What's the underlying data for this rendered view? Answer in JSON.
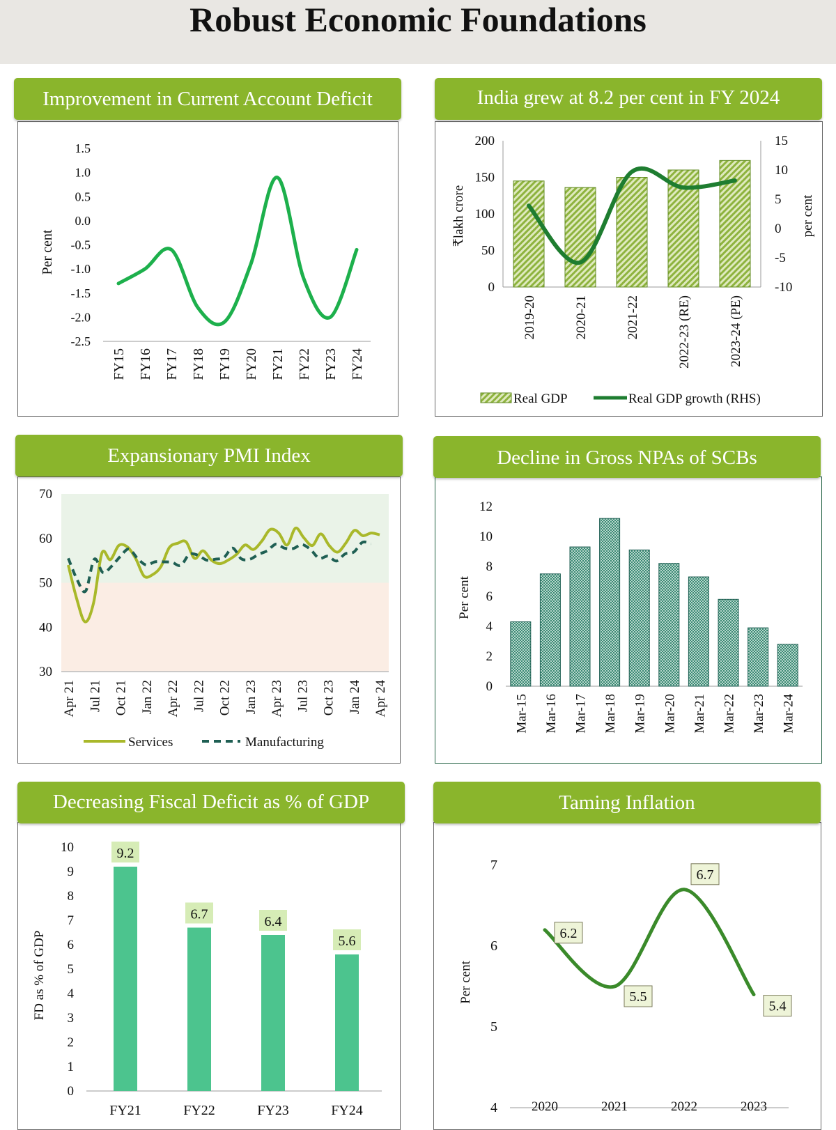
{
  "page": {
    "title": "Robust Economic Foundations"
  },
  "chart_data": [
    {
      "id": "cad",
      "type": "line",
      "title": "Improvement in Current Account Deficit",
      "ylabel": "Per cent",
      "xlabel": "",
      "categories": [
        "FY15",
        "FY16",
        "FY17",
        "FY18",
        "FY19",
        "FY20",
        "FY21",
        "FY22",
        "FY23",
        "FY24"
      ],
      "series": [
        {
          "name": "",
          "values": [
            -1.3,
            -1.0,
            -0.6,
            -1.8,
            -2.1,
            -0.9,
            0.9,
            -1.2,
            -2.0,
            -0.6
          ],
          "color": "#1db04c"
        }
      ],
      "ylim": [
        -2.5,
        1.5
      ],
      "yticks": [
        "1.5",
        "1.0",
        "0.5",
        "0.0",
        "-0.5",
        "-1.0",
        "-1.5",
        "-2.0",
        "-2.5"
      ],
      "grid": false
    },
    {
      "id": "gdp",
      "type": "bar",
      "title": "India grew at 8.2 per cent in FY 2024",
      "ylabel": "₹lakh crore",
      "y2label": "per cent",
      "categories": [
        "2019-20",
        "2020-21",
        "2021-22",
        "2022-23 (RE)",
        "2023-24 (PE)"
      ],
      "series": [
        {
          "name": "Real GDP",
          "values": [
            145,
            136,
            150,
            160,
            173
          ],
          "color": "#9dbf4f"
        },
        {
          "name": "Real GDP growth (RHS)",
          "values": [
            3.9,
            -5.8,
            9.7,
            7.0,
            8.2
          ],
          "color": "#1e7d30",
          "axis": "right"
        }
      ],
      "ylim": [
        0,
        200
      ],
      "yticks": [
        "200",
        "150",
        "100",
        "50",
        "0"
      ],
      "y2lim": [
        -10,
        15
      ],
      "y2ticks": [
        "15",
        "10",
        "5",
        "0",
        "-5",
        "-10"
      ],
      "legend": "bottom",
      "grid": false
    },
    {
      "id": "pmi",
      "type": "line",
      "title": "Expansionary PMI Index",
      "ylabel": "",
      "xticks": [
        "Apr 21",
        "Jul 21",
        "Oct 21",
        "Jan 22",
        "Apr 22",
        "Jul 22",
        "Oct 22",
        "Jan 23",
        "Apr 23",
        "Jul 23",
        "Oct 23",
        "Jan 24",
        "Apr 24"
      ],
      "series": [
        {
          "name": "Services",
          "color": "#a9b82a",
          "values": [
            54.0,
            46.4,
            41.2,
            45.4,
            56.7,
            55.2,
            58.4,
            58.1,
            55.5,
            51.5,
            51.8,
            53.6,
            57.9,
            58.9,
            59.2,
            55.5,
            57.2,
            55.1,
            54.3,
            55.1,
            56.4,
            58.5,
            57.5,
            59.4,
            62.0,
            61.2,
            58.5,
            62.3,
            60.1,
            58.4,
            61.0,
            58.4,
            56.9,
            59.0,
            61.8,
            60.6,
            61.2,
            60.8
          ]
        },
        {
          "name": "Manufacturing",
          "color": "#1f5f53",
          "values": [
            55.5,
            50.8,
            48.1,
            55.3,
            52.3,
            53.7,
            55.9,
            57.6,
            55.5,
            54.0,
            54.7,
            54.7,
            54.6,
            53.9,
            56.4,
            56.2,
            55.1,
            55.3,
            55.7,
            57.8,
            55.4,
            55.3,
            56.4,
            57.2,
            58.7,
            57.8,
            57.7,
            58.6,
            57.5,
            55.5,
            56.0,
            54.9,
            56.5,
            56.9,
            59.1,
            58.8
          ]
        }
      ],
      "ylim": [
        30,
        70
      ],
      "yticks": [
        "70",
        "60",
        "50",
        "40",
        "30"
      ],
      "legend": "bottom",
      "grid": false
    },
    {
      "id": "npa",
      "type": "bar",
      "title": "Decline in Gross NPAs of SCBs",
      "ylabel": "Per cent",
      "categories": [
        "Mar-15",
        "Mar-16",
        "Mar-17",
        "Mar-18",
        "Mar-19",
        "Mar-20",
        "Mar-21",
        "Mar-22",
        "Mar-23",
        "Mar-24"
      ],
      "series": [
        {
          "name": "",
          "values": [
            4.3,
            7.5,
            9.3,
            11.2,
            9.1,
            8.2,
            7.3,
            5.8,
            3.9,
            2.8
          ],
          "color": "#2f7c6c"
        }
      ],
      "ylim": [
        0,
        12
      ],
      "yticks": [
        "12",
        "10",
        "8",
        "6",
        "4",
        "2",
        "0"
      ],
      "grid": false
    },
    {
      "id": "fd",
      "type": "bar",
      "title": "Decreasing Fiscal Deficit as %  of GDP",
      "ylabel": "FD as % of GDP",
      "categories": [
        "FY21",
        "FY22",
        "FY23",
        "FY24"
      ],
      "series": [
        {
          "name": "",
          "values": [
            9.2,
            6.7,
            6.4,
            5.6
          ],
          "labels": [
            "9.2",
            "6.7",
            "6.4",
            "5.6"
          ],
          "color": "#4cc48e"
        }
      ],
      "ylim": [
        0,
        10
      ],
      "yticks": [
        "10",
        "9",
        "8",
        "7",
        "6",
        "5",
        "4",
        "3",
        "2",
        "1",
        "0"
      ],
      "grid": false
    },
    {
      "id": "infl",
      "type": "line",
      "title": "Taming Inflation",
      "ylabel": "Per cent",
      "categories": [
        "2020",
        "2021",
        "2022",
        "2023"
      ],
      "series": [
        {
          "name": "",
          "values": [
            6.2,
            5.5,
            6.7,
            5.4
          ],
          "labels": [
            "6.2",
            "5.5",
            "6.7",
            "5.4"
          ],
          "color": "#3a8a2a"
        }
      ],
      "ylim": [
        4,
        7
      ],
      "yticks": [
        "7",
        "6",
        "5",
        "4"
      ],
      "grid": false
    }
  ]
}
